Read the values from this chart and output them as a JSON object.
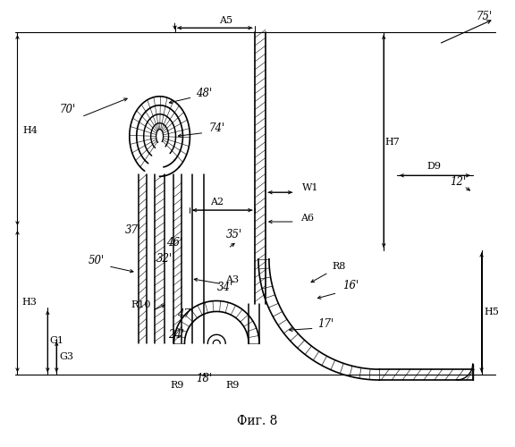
{
  "fig_label": "Фиг. 8",
  "bg_color": "#ffffff",
  "line_color": "#000000",
  "labels": {
    "75p": "75'",
    "A5": "A5",
    "70p": "70'",
    "H4": "H4",
    "48p": "48'",
    "74p": "74'",
    "A2": "A2",
    "37p": "37'",
    "W1": "W1",
    "A6": "A6",
    "46p": "46'",
    "32p": "32'",
    "35p": "35'",
    "50p": "50'",
    "A3": "A3",
    "H3": "H3",
    "R10": "R10",
    "G1": "G1",
    "34p": "34'",
    "G3": "G3",
    "47p": "47'",
    "24p": "24'",
    "R8": "R8",
    "16p": "16'",
    "17p": "17'",
    "H5": "H5",
    "R9": "R9",
    "18p": "18'",
    "H7": "H7",
    "D9": "D9",
    "12p": "12'"
  }
}
